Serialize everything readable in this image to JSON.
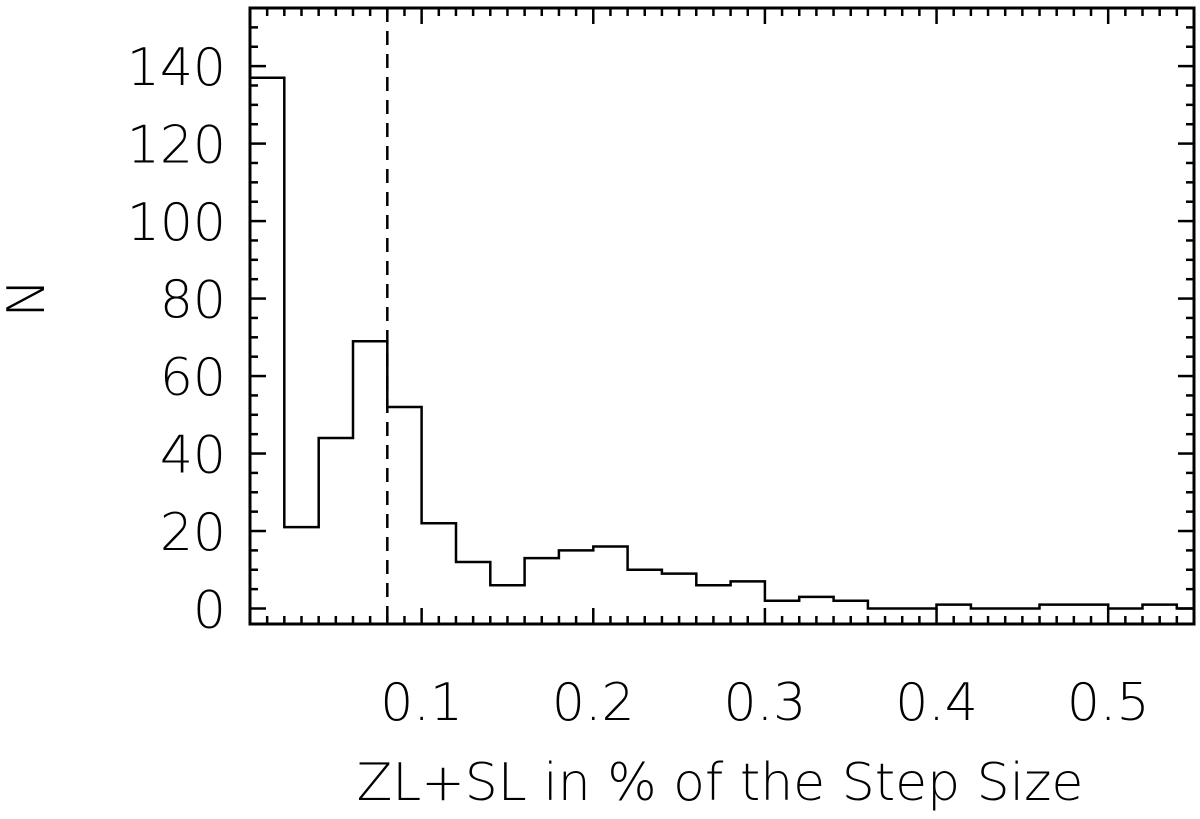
{
  "chart_data": {
    "type": "bar",
    "style": "step-histogram",
    "title": "",
    "xlabel": "ZL+SL in % of the Step Size",
    "ylabel": "N",
    "xlim": [
      0.0,
      0.55
    ],
    "ylim": [
      -4,
      155
    ],
    "x_ticks": [
      {
        "value": 0.1,
        "label": "0.1"
      },
      {
        "value": 0.2,
        "label": "0.2"
      },
      {
        "value": 0.3,
        "label": "0.3"
      },
      {
        "value": 0.4,
        "label": "0.4"
      },
      {
        "value": 0.5,
        "label": "0.5"
      }
    ],
    "y_ticks": [
      {
        "value": 0,
        "label": "0"
      },
      {
        "value": 20,
        "label": "20"
      },
      {
        "value": 40,
        "label": "40"
      },
      {
        "value": 60,
        "label": "60"
      },
      {
        "value": 80,
        "label": "80"
      },
      {
        "value": 100,
        "label": "100"
      },
      {
        "value": 120,
        "label": "120"
      },
      {
        "value": 140,
        "label": "140"
      }
    ],
    "bin_edges": [
      0.0,
      0.02,
      0.04,
      0.06,
      0.08,
      0.1,
      0.12,
      0.14,
      0.16,
      0.18,
      0.2,
      0.22,
      0.24,
      0.26,
      0.28,
      0.3,
      0.32,
      0.34,
      0.36,
      0.38,
      0.4,
      0.42,
      0.44,
      0.46,
      0.48,
      0.5,
      0.52,
      0.54,
      0.55
    ],
    "counts": [
      137,
      21,
      44,
      69,
      52,
      22,
      12,
      6,
      13,
      15,
      16,
      10,
      9,
      6,
      7,
      2,
      3,
      2,
      0,
      0,
      1,
      0,
      0,
      1,
      1,
      0,
      1,
      0
    ],
    "reference_line": {
      "x": 0.08,
      "style": "dashed"
    },
    "grid": false,
    "legend": "none"
  }
}
